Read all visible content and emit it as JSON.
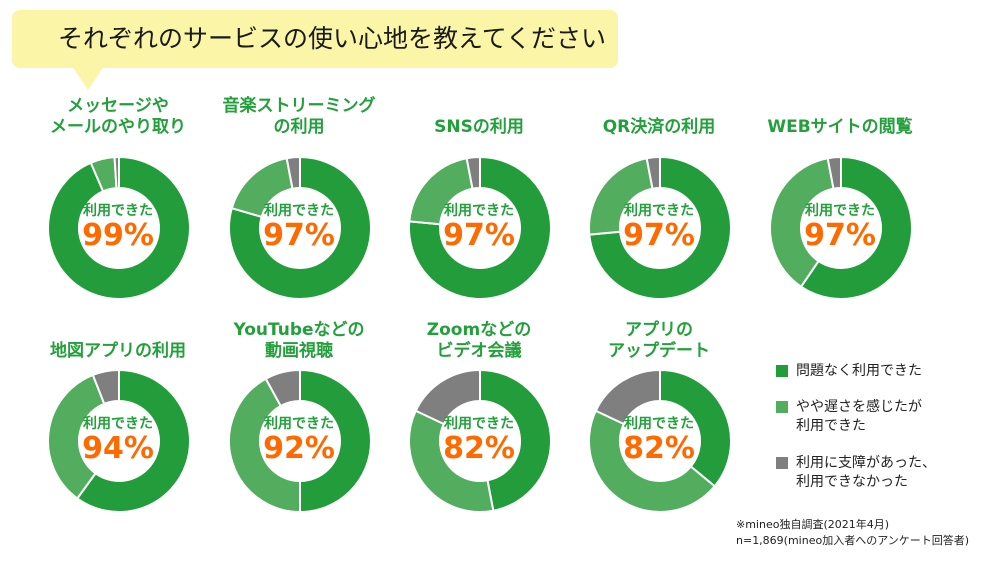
{
  "header": {
    "title": "それぞれのサービスの使い心地を教えてください"
  },
  "colors": {
    "no_problem": "#239c3c",
    "somewhat_slow": "#52ae5e",
    "problem": "#7f7f7f",
    "title_green": "#23a03c",
    "percent_orange": "#ff6a00"
  },
  "chart_data": {
    "type": "pie",
    "center_label": "利用できた",
    "legend": [
      {
        "key": "no_problem",
        "label": "問題なく利用できた"
      },
      {
        "key": "somewhat_slow",
        "label": "やや遅さを感じたが 利用できた"
      },
      {
        "key": "problem",
        "label": "利用に支障があった、 利用できなかった"
      }
    ],
    "charts": [
      {
        "title": "メッセージや メールのやり取り",
        "usable_percent": "99%",
        "values": {
          "no_problem": 93.5,
          "somewhat_slow": 5.5,
          "problem": 1.0
        }
      },
      {
        "title": "音楽ストリーミング の利用",
        "usable_percent": "97%",
        "values": {
          "no_problem": 79.5,
          "somewhat_slow": 17.5,
          "problem": 3.0
        }
      },
      {
        "title": "SNSの利用",
        "usable_percent": "97%",
        "values": {
          "no_problem": 76.5,
          "somewhat_slow": 20.5,
          "problem": 3.0
        }
      },
      {
        "title": "QR決済の利用",
        "usable_percent": "97%",
        "values": {
          "no_problem": 73.5,
          "somewhat_slow": 23.5,
          "problem": 3.0
        }
      },
      {
        "title": "WEBサイトの閲覧",
        "usable_percent": "97%",
        "values": {
          "no_problem": 59.5,
          "somewhat_slow": 37.5,
          "problem": 3.0
        }
      },
      {
        "title": "地図アプリの利用",
        "usable_percent": "94%",
        "values": {
          "no_problem": 60.0,
          "somewhat_slow": 34.0,
          "problem": 6.0
        }
      },
      {
        "title": "YouTubeなどの 動画視聴",
        "usable_percent": "92%",
        "values": {
          "no_problem": 50.0,
          "somewhat_slow": 42.0,
          "problem": 8.0
        }
      },
      {
        "title": "Zoomなどの ビデオ会議",
        "usable_percent": "82%",
        "values": {
          "no_problem": 47.0,
          "somewhat_slow": 35.0,
          "problem": 18.0
        }
      },
      {
        "title": "アプリの アップデート",
        "usable_percent": "82%",
        "values": {
          "no_problem": 36.0,
          "somewhat_slow": 46.0,
          "problem": 18.0
        }
      }
    ]
  },
  "notes": {
    "source": "※mineo独自調査(2021年4月)",
    "sample": "n=1,869(mineo加入者へのアンケート回答者)"
  }
}
